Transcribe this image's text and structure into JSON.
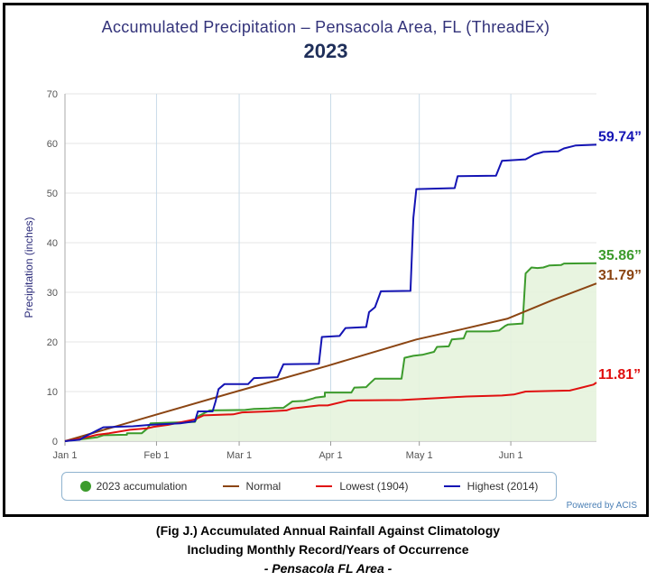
{
  "chart_data": {
    "type": "line",
    "title": "Accumulated Precipitation – Pensacola Area, FL (ThreadEx)",
    "subtitle": "2023",
    "ylabel": "Precipitation (inches)",
    "ylim": [
      0,
      70
    ],
    "y_ticks": [
      "0",
      "10",
      "20",
      "30",
      "40",
      "50",
      "60",
      "70"
    ],
    "x_ticks": [
      {
        "label": "Jan 1",
        "day": 1
      },
      {
        "label": "Feb 1",
        "day": 32
      },
      {
        "label": "Mar 1",
        "day": 60
      },
      {
        "label": "Apr 1",
        "day": 91
      },
      {
        "label": "May 1",
        "day": 121
      },
      {
        "label": "Jun 1",
        "day": 152
      }
    ],
    "x_range_days": [
      1,
      181
    ],
    "series": [
      {
        "name": "2023 accumulation",
        "color": "#3c9b2c",
        "style": "area",
        "end_label": "35.86”",
        "points": [
          [
            1,
            0
          ],
          [
            8,
            0.5
          ],
          [
            12,
            0.8
          ],
          [
            14,
            1.2
          ],
          [
            22,
            1.3
          ],
          [
            22,
            1.6
          ],
          [
            27,
            1.6
          ],
          [
            29,
            2.6
          ],
          [
            30,
            3.6
          ],
          [
            35,
            3.7
          ],
          [
            40,
            3.8
          ],
          [
            45,
            3.9
          ],
          [
            46,
            5.0
          ],
          [
            50,
            6.2
          ],
          [
            62,
            6.3
          ],
          [
            65,
            6.5
          ],
          [
            70,
            6.6
          ],
          [
            72,
            6.7
          ],
          [
            75,
            6.7
          ],
          [
            78,
            8.0
          ],
          [
            82,
            8.1
          ],
          [
            85,
            8.6
          ],
          [
            86,
            8.8
          ],
          [
            89,
            9.0
          ],
          [
            89,
            9.8
          ],
          [
            98,
            9.8
          ],
          [
            99,
            10.8
          ],
          [
            103,
            10.9
          ],
          [
            104,
            11.5
          ],
          [
            106,
            12.6
          ],
          [
            115,
            12.6
          ],
          [
            116,
            16.8
          ],
          [
            119,
            17.2
          ],
          [
            122,
            17.4
          ],
          [
            126,
            18.0
          ],
          [
            127,
            19.0
          ],
          [
            131,
            19.1
          ],
          [
            132,
            20.5
          ],
          [
            136,
            20.7
          ],
          [
            137,
            22.1
          ],
          [
            145,
            22.1
          ],
          [
            148,
            22.3
          ],
          [
            150,
            23.2
          ],
          [
            151,
            23.5
          ],
          [
            156,
            23.7
          ],
          [
            156,
            23.8
          ],
          [
            157,
            33.8
          ],
          [
            159,
            35.0
          ],
          [
            161,
            34.9
          ],
          [
            163,
            35.0
          ],
          [
            165,
            35.4
          ],
          [
            169,
            35.5
          ],
          [
            170,
            35.8
          ],
          [
            181,
            35.86
          ]
        ]
      },
      {
        "name": "Normal",
        "color": "#8b4513",
        "style": "line",
        "end_label": "31.79”",
        "points": [
          [
            1,
            0
          ],
          [
            31,
            5.2
          ],
          [
            59,
            10.0
          ],
          [
            90,
            15.2
          ],
          [
            120,
            20.5
          ],
          [
            135,
            22.5
          ],
          [
            151,
            24.7
          ],
          [
            166,
            28.4
          ],
          [
            181,
            31.79
          ]
        ]
      },
      {
        "name": "Lowest (1904)",
        "color": "#e01010",
        "style": "line",
        "end_label": "11.81”",
        "points": [
          [
            1,
            0
          ],
          [
            7,
            0.6
          ],
          [
            12,
            1.3
          ],
          [
            16,
            1.6
          ],
          [
            23,
            2.3
          ],
          [
            29,
            2.6
          ],
          [
            31,
            2.9
          ],
          [
            36,
            3.3
          ],
          [
            45,
            4.4
          ],
          [
            48,
            5.2
          ],
          [
            58,
            5.4
          ],
          [
            61,
            5.8
          ],
          [
            70,
            6.0
          ],
          [
            76,
            6.2
          ],
          [
            78,
            6.6
          ],
          [
            84,
            7.0
          ],
          [
            87,
            7.2
          ],
          [
            90,
            7.2
          ],
          [
            97,
            8.2
          ],
          [
            115,
            8.3
          ],
          [
            128,
            8.7
          ],
          [
            137,
            9.0
          ],
          [
            149,
            9.2
          ],
          [
            153,
            9.4
          ],
          [
            157,
            10.0
          ],
          [
            172,
            10.2
          ],
          [
            176,
            10.8
          ],
          [
            180,
            11.4
          ],
          [
            181,
            11.81
          ]
        ]
      },
      {
        "name": "Highest (2014)",
        "color": "#1414b4",
        "style": "line",
        "end_label": "59.74”",
        "points": [
          [
            1,
            0
          ],
          [
            6,
            0.3
          ],
          [
            8,
            1.0
          ],
          [
            12,
            2.2
          ],
          [
            14,
            2.8
          ],
          [
            24,
            3.0
          ],
          [
            30,
            3.3
          ],
          [
            40,
            3.6
          ],
          [
            45,
            4.0
          ],
          [
            46,
            6.0
          ],
          [
            51,
            6.0
          ],
          [
            52,
            8.0
          ],
          [
            53,
            10.5
          ],
          [
            55,
            11.5
          ],
          [
            63,
            11.5
          ],
          [
            65,
            12.7
          ],
          [
            73,
            12.9
          ],
          [
            75,
            15.5
          ],
          [
            87,
            15.6
          ],
          [
            88,
            21.0
          ],
          [
            94,
            21.2
          ],
          [
            96,
            22.8
          ],
          [
            103,
            23.0
          ],
          [
            104,
            26.0
          ],
          [
            106,
            27.0
          ],
          [
            108,
            30.2
          ],
          [
            118,
            30.3
          ],
          [
            119,
            45.0
          ],
          [
            120,
            50.8
          ],
          [
            133,
            51.0
          ],
          [
            134,
            53.4
          ],
          [
            147,
            53.5
          ],
          [
            149,
            56.5
          ],
          [
            157,
            56.8
          ],
          [
            160,
            57.8
          ],
          [
            163,
            58.3
          ],
          [
            168,
            58.4
          ],
          [
            170,
            59.0
          ],
          [
            174,
            59.6
          ],
          [
            181,
            59.74
          ]
        ]
      }
    ],
    "legend": {
      "placement": "bottom",
      "items": [
        "2023 accumulation",
        "Normal",
        "Lowest (1904)",
        "Highest (2014)"
      ]
    },
    "grid": true
  },
  "credit": "Powered by ACIS",
  "caption": {
    "line1": "(Fig J.) Accumulated Annual Rainfall Against  Climatology",
    "line2": "Including Monthly Record/Years of Occurrence",
    "line3": "- Pensacola FL Area -"
  }
}
